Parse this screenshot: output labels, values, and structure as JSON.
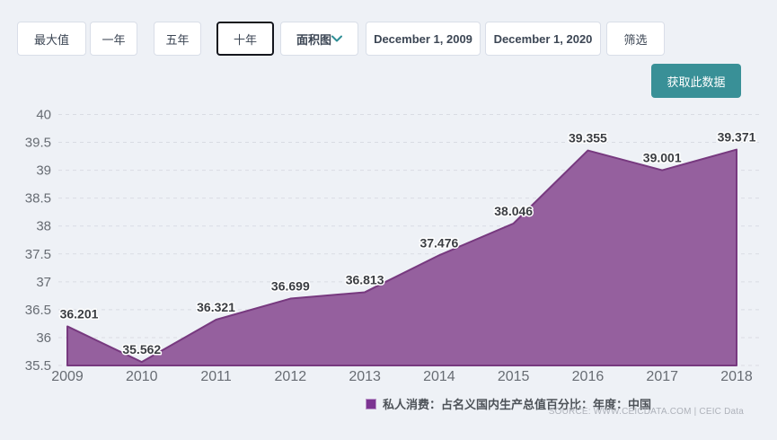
{
  "toolbar": {
    "max_label": "最大值",
    "one_year_label": "一年",
    "five_year_label": "五年",
    "ten_year_label": "十年",
    "chart_type_selected": "面积图",
    "date_from": "December 1, 2009",
    "date_to": "December 1, 2020",
    "filter_label": "筛选",
    "get_data_label": "获取此数据"
  },
  "chart_data": {
    "type": "area",
    "x": [
      2009,
      2010,
      2011,
      2012,
      2013,
      2014,
      2015,
      2016,
      2017,
      2018
    ],
    "series": [
      {
        "name": "私人消费：占名义国内生产总值百分比：年度：中国",
        "values": [
          36.201,
          35.562,
          36.321,
          36.699,
          36.813,
          37.476,
          38.046,
          39.355,
          39.001,
          39.371
        ]
      }
    ],
    "ylim": [
      35.5,
      40
    ],
    "ytick_step": 0.5,
    "grid": "horizontal-dashed",
    "data_labels": true,
    "legend_position": "bottom",
    "title": "",
    "xlabel": "",
    "ylabel": ""
  },
  "source": {
    "text": "SOURCE: WWW.CEICDATA.COM | CEIC Data"
  },
  "colors": {
    "page_bg": "#eef1f6",
    "area_fill": "#95609e",
    "area_stroke": "#77397f",
    "legend_swatch": "#7c3492",
    "gridline": "#d9dce3",
    "axis_label": "#676c73",
    "data_label": "#3a3d42",
    "teal_accent": "#399097",
    "dark_purple": "#3f2a56"
  }
}
